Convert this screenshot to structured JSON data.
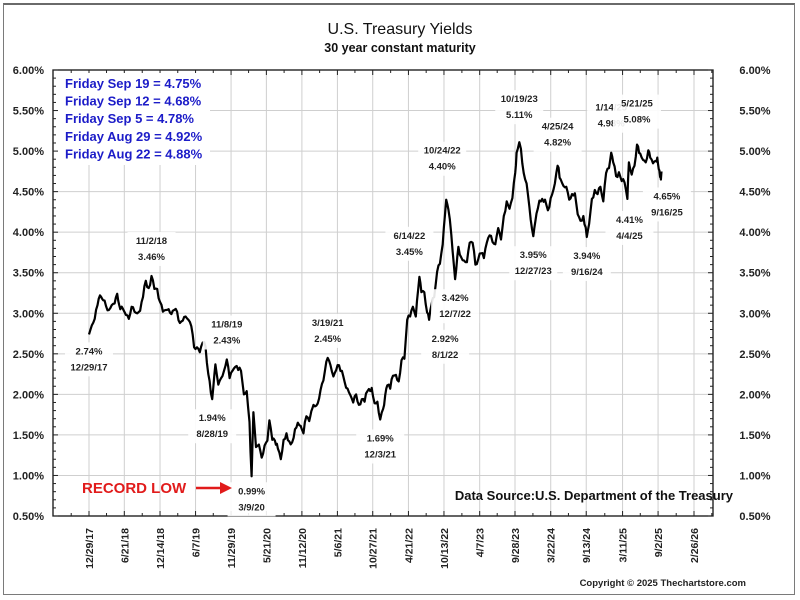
{
  "chart_data": {
    "type": "line",
    "title": "U.S. Treasury Yields",
    "subtitle": "30 year constant maturity",
    "xlabel": "",
    "ylabel": "",
    "ylim": [
      0.5,
      6.0
    ],
    "y_ticks": [
      "6.00%",
      "5.50%",
      "5.00%",
      "4.50%",
      "4.00%",
      "3.50%",
      "3.00%",
      "2.50%",
      "2.00%",
      "1.50%",
      "1.00%",
      "0.50%"
    ],
    "y_tick_values": [
      6.0,
      5.5,
      5.0,
      4.5,
      4.0,
      3.5,
      3.0,
      2.5,
      2.0,
      1.5,
      1.0,
      0.5
    ],
    "x_ticks": [
      "12/29/17",
      "6/21/18",
      "12/14/18",
      "6/7/19",
      "11/29/19",
      "5/21/20",
      "11/12/20",
      "5/6/21",
      "10/27/21",
      "4/21/22",
      "10/13/22",
      "4/7/23",
      "9/28/23",
      "3/22/24",
      "9/13/24",
      "3/11/25",
      "9/2/25",
      "2/26/26"
    ],
    "x_tick_dates": [
      "2017-12-29",
      "2018-06-21",
      "2018-12-14",
      "2019-06-07",
      "2019-11-29",
      "2020-05-21",
      "2020-11-12",
      "2021-05-06",
      "2021-10-27",
      "2022-04-21",
      "2022-10-13",
      "2023-04-07",
      "2023-09-28",
      "2024-03-22",
      "2024-09-13",
      "2025-03-11",
      "2025-09-02",
      "2026-02-26"
    ],
    "x_range": [
      "2017-10-01",
      "2026-05-15"
    ],
    "grid": true,
    "series": [
      {
        "name": "30 Year Treasury Yield",
        "points": [
          [
            "2017-12-29",
            2.74
          ],
          [
            "2018-01-12",
            2.85
          ],
          [
            "2018-01-26",
            2.93
          ],
          [
            "2018-02-09",
            3.1
          ],
          [
            "2018-02-21",
            3.22
          ],
          [
            "2018-03-09",
            3.16
          ],
          [
            "2018-03-23",
            3.09
          ],
          [
            "2018-04-06",
            3.04
          ],
          [
            "2018-04-20",
            3.1
          ],
          [
            "2018-05-04",
            3.12
          ],
          [
            "2018-05-17",
            3.24
          ],
          [
            "2018-06-01",
            3.05
          ],
          [
            "2018-06-15",
            3.05
          ],
          [
            "2018-06-29",
            2.98
          ],
          [
            "2018-07-13",
            2.93
          ],
          [
            "2018-07-27",
            3.08
          ],
          [
            "2018-08-10",
            3.02
          ],
          [
            "2018-08-24",
            3.0
          ],
          [
            "2018-09-07",
            3.03
          ],
          [
            "2018-09-21",
            3.2
          ],
          [
            "2018-10-05",
            3.4
          ],
          [
            "2018-10-19",
            3.31
          ],
          [
            "2018-11-02",
            3.46
          ],
          [
            "2018-11-16",
            3.3
          ],
          [
            "2018-11-30",
            3.3
          ],
          [
            "2018-12-14",
            3.14
          ],
          [
            "2018-12-28",
            3.02
          ],
          [
            "2019-01-11",
            3.04
          ],
          [
            "2019-01-25",
            3.05
          ],
          [
            "2019-02-08",
            2.99
          ],
          [
            "2019-02-22",
            3.04
          ],
          [
            "2019-03-08",
            3.02
          ],
          [
            "2019-03-22",
            2.88
          ],
          [
            "2019-04-05",
            2.91
          ],
          [
            "2019-04-19",
            2.96
          ],
          [
            "2019-05-03",
            2.92
          ],
          [
            "2019-05-17",
            2.84
          ],
          [
            "2019-05-31",
            2.58
          ],
          [
            "2019-06-14",
            2.58
          ],
          [
            "2019-06-28",
            2.52
          ],
          [
            "2019-07-12",
            2.64
          ],
          [
            "2019-07-26",
            2.59
          ],
          [
            "2019-08-09",
            2.25
          ],
          [
            "2019-08-28",
            1.94
          ],
          [
            "2019-09-13",
            2.37
          ],
          [
            "2019-09-27",
            2.12
          ],
          [
            "2019-10-11",
            2.2
          ],
          [
            "2019-10-25",
            2.29
          ],
          [
            "2019-11-08",
            2.43
          ],
          [
            "2019-11-22",
            2.2
          ],
          [
            "2019-12-06",
            2.29
          ],
          [
            "2019-12-20",
            2.34
          ],
          [
            "2020-01-03",
            2.3
          ],
          [
            "2020-01-17",
            2.29
          ],
          [
            "2020-01-31",
            2.0
          ],
          [
            "2020-02-14",
            2.04
          ],
          [
            "2020-02-28",
            1.66
          ],
          [
            "2020-03-09",
            0.99
          ],
          [
            "2020-03-18",
            1.78
          ],
          [
            "2020-03-31",
            1.35
          ],
          [
            "2020-04-14",
            1.38
          ],
          [
            "2020-04-28",
            1.22
          ],
          [
            "2020-05-12",
            1.37
          ],
          [
            "2020-05-26",
            1.43
          ],
          [
            "2020-06-05",
            1.68
          ],
          [
            "2020-06-19",
            1.44
          ],
          [
            "2020-07-02",
            1.43
          ],
          [
            "2020-07-17",
            1.33
          ],
          [
            "2020-07-31",
            1.2
          ],
          [
            "2020-08-14",
            1.44
          ],
          [
            "2020-08-28",
            1.52
          ],
          [
            "2020-09-11",
            1.42
          ],
          [
            "2020-09-25",
            1.41
          ],
          [
            "2020-10-09",
            1.57
          ],
          [
            "2020-10-23",
            1.65
          ],
          [
            "2020-11-06",
            1.61
          ],
          [
            "2020-11-20",
            1.52
          ],
          [
            "2020-12-04",
            1.73
          ],
          [
            "2020-12-18",
            1.67
          ],
          [
            "2021-01-08",
            1.87
          ],
          [
            "2021-01-22",
            1.86
          ],
          [
            "2021-02-05",
            1.95
          ],
          [
            "2021-02-19",
            2.13
          ],
          [
            "2021-03-05",
            2.28
          ],
          [
            "2021-03-19",
            2.45
          ],
          [
            "2021-04-02",
            2.36
          ],
          [
            "2021-04-16",
            2.22
          ],
          [
            "2021-04-30",
            2.3
          ],
          [
            "2021-05-14",
            2.36
          ],
          [
            "2021-05-28",
            2.29
          ],
          [
            "2021-06-11",
            2.15
          ],
          [
            "2021-06-25",
            2.07
          ],
          [
            "2021-07-09",
            1.99
          ],
          [
            "2021-07-23",
            1.9
          ],
          [
            "2021-08-06",
            2.0
          ],
          [
            "2021-08-20",
            1.87
          ],
          [
            "2021-09-03",
            1.94
          ],
          [
            "2021-09-17",
            1.91
          ],
          [
            "2021-10-01",
            2.04
          ],
          [
            "2021-10-15",
            2.04
          ],
          [
            "2021-10-22",
            2.08
          ],
          [
            "2021-11-05",
            1.89
          ],
          [
            "2021-11-19",
            1.91
          ],
          [
            "2021-12-03",
            1.69
          ],
          [
            "2021-12-17",
            1.82
          ],
          [
            "2022-01-07",
            2.11
          ],
          [
            "2022-01-21",
            2.07
          ],
          [
            "2022-02-04",
            2.23
          ],
          [
            "2022-02-18",
            2.24
          ],
          [
            "2022-03-04",
            2.16
          ],
          [
            "2022-03-18",
            2.42
          ],
          [
            "2022-04-01",
            2.44
          ],
          [
            "2022-04-15",
            2.92
          ],
          [
            "2022-04-29",
            2.96
          ],
          [
            "2022-05-13",
            3.08
          ],
          [
            "2022-05-27",
            2.96
          ],
          [
            "2022-06-14",
            3.45
          ],
          [
            "2022-06-24",
            3.26
          ],
          [
            "2022-07-08",
            3.26
          ],
          [
            "2022-07-22",
            3.01
          ],
          [
            "2022-08-01",
            2.92
          ],
          [
            "2022-08-12",
            3.1
          ],
          [
            "2022-08-26",
            3.2
          ],
          [
            "2022-09-09",
            3.51
          ],
          [
            "2022-09-23",
            3.61
          ],
          [
            "2022-10-07",
            3.85
          ],
          [
            "2022-10-24",
            4.4
          ],
          [
            "2022-11-04",
            4.28
          ],
          [
            "2022-11-18",
            3.97
          ],
          [
            "2022-12-07",
            3.42
          ],
          [
            "2022-12-23",
            3.82
          ],
          [
            "2023-01-06",
            3.69
          ],
          [
            "2023-01-20",
            3.65
          ],
          [
            "2023-02-03",
            3.63
          ],
          [
            "2023-02-17",
            3.87
          ],
          [
            "2023-03-03",
            3.87
          ],
          [
            "2023-03-17",
            3.6
          ],
          [
            "2023-03-31",
            3.67
          ],
          [
            "2023-04-14",
            3.74
          ],
          [
            "2023-04-28",
            3.68
          ],
          [
            "2023-05-12",
            3.87
          ],
          [
            "2023-05-26",
            3.96
          ],
          [
            "2023-06-09",
            3.88
          ],
          [
            "2023-06-23",
            3.85
          ],
          [
            "2023-07-07",
            4.05
          ],
          [
            "2023-07-21",
            3.91
          ],
          [
            "2023-08-04",
            4.2
          ],
          [
            "2023-08-18",
            4.38
          ],
          [
            "2023-09-01",
            4.29
          ],
          [
            "2023-09-15",
            4.42
          ],
          [
            "2023-09-29",
            4.73
          ],
          [
            "2023-10-06",
            4.98
          ],
          [
            "2023-10-19",
            5.11
          ],
          [
            "2023-10-27",
            5.03
          ],
          [
            "2023-11-10",
            4.73
          ],
          [
            "2023-11-24",
            4.6
          ],
          [
            "2023-12-08",
            4.31
          ],
          [
            "2023-12-27",
            3.95
          ],
          [
            "2024-01-12",
            4.23
          ],
          [
            "2024-01-26",
            4.39
          ],
          [
            "2024-02-09",
            4.41
          ],
          [
            "2024-02-23",
            4.4
          ],
          [
            "2024-03-08",
            4.27
          ],
          [
            "2024-03-22",
            4.42
          ],
          [
            "2024-04-05",
            4.53
          ],
          [
            "2024-04-25",
            4.82
          ],
          [
            "2024-05-10",
            4.65
          ],
          [
            "2024-05-24",
            4.57
          ],
          [
            "2024-06-07",
            4.56
          ],
          [
            "2024-06-21",
            4.4
          ],
          [
            "2024-07-05",
            4.47
          ],
          [
            "2024-07-19",
            4.48
          ],
          [
            "2024-08-02",
            4.22
          ],
          [
            "2024-08-16",
            4.14
          ],
          [
            "2024-08-30",
            4.2
          ],
          [
            "2024-09-16",
            3.94
          ],
          [
            "2024-09-27",
            4.1
          ],
          [
            "2024-10-11",
            4.41
          ],
          [
            "2024-10-25",
            4.52
          ],
          [
            "2024-11-08",
            4.47
          ],
          [
            "2024-11-22",
            4.56
          ],
          [
            "2024-12-06",
            4.38
          ],
          [
            "2024-12-20",
            4.73
          ],
          [
            "2025-01-03",
            4.79
          ],
          [
            "2025-01-14",
            4.98
          ],
          [
            "2025-01-24",
            4.86
          ],
          [
            "2025-02-07",
            4.69
          ],
          [
            "2025-02-21",
            4.74
          ],
          [
            "2025-03-07",
            4.63
          ],
          [
            "2025-03-21",
            4.61
          ],
          [
            "2025-04-04",
            4.41
          ],
          [
            "2025-04-11",
            4.86
          ],
          [
            "2025-04-25",
            4.71
          ],
          [
            "2025-05-09",
            4.82
          ],
          [
            "2025-05-21",
            5.08
          ],
          [
            "2025-06-06",
            4.97
          ],
          [
            "2025-06-20",
            4.89
          ],
          [
            "2025-07-03",
            4.86
          ],
          [
            "2025-07-16",
            5.01
          ],
          [
            "2025-07-25",
            4.92
          ],
          [
            "2025-08-08",
            4.85
          ],
          [
            "2025-08-22",
            4.88
          ],
          [
            "2025-08-29",
            4.92
          ],
          [
            "2025-09-05",
            4.78
          ],
          [
            "2025-09-12",
            4.68
          ],
          [
            "2025-09-16",
            4.65
          ],
          [
            "2025-09-19",
            4.75
          ]
        ]
      }
    ],
    "annotations": [
      {
        "date_label": "12/29/17",
        "value_label": "2.74%",
        "date": "2017-12-29",
        "value": 2.74,
        "position": "below",
        "order": "value-first"
      },
      {
        "date_label": "11/2/18",
        "value_label": "3.46%",
        "date": "2018-11-02",
        "value": 3.46,
        "position": "above",
        "order": "date-first"
      },
      {
        "date_label": "8/28/19",
        "value_label": "1.94%",
        "date": "2019-08-28",
        "value": 1.94,
        "position": "below",
        "order": "value-first"
      },
      {
        "date_label": "11/8/19",
        "value_label": "2.43%",
        "date": "2019-11-08",
        "value": 2.43,
        "position": "above",
        "order": "date-first"
      },
      {
        "date_label": "3/9/20",
        "value_label": "0.99%",
        "date": "2020-03-09",
        "value": 0.99,
        "position": "below",
        "order": "value-first"
      },
      {
        "date_label": "3/19/21",
        "value_label": "2.45%",
        "date": "2021-03-19",
        "value": 2.45,
        "position": "above",
        "order": "date-first"
      },
      {
        "date_label": "12/3/21",
        "value_label": "1.69%",
        "date": "2021-12-03",
        "value": 1.69,
        "position": "below",
        "order": "value-first"
      },
      {
        "date_label": "6/14/22",
        "value_label": "3.45%",
        "date": "2022-06-14",
        "value": 3.45,
        "position": "above-left",
        "order": "date-first"
      },
      {
        "date_label": "8/1/22",
        "value_label": "2.92%",
        "date": "2022-08-01",
        "value": 2.92,
        "position": "below-right",
        "order": "value-first"
      },
      {
        "date_label": "10/24/22",
        "value_label": "4.40%",
        "date": "2022-10-24",
        "value": 4.4,
        "position": "above",
        "order": "date-first"
      },
      {
        "date_label": "12/7/22",
        "value_label": "3.42%",
        "date": "2022-12-07",
        "value": 3.42,
        "position": "below",
        "order": "value-first"
      },
      {
        "date_label": "10/19/23",
        "value_label": "5.11%",
        "date": "2023-10-19",
        "value": 5.11,
        "position": "above",
        "order": "date-first"
      },
      {
        "date_label": "12/27/23",
        "value_label": "3.95%",
        "date": "2023-12-27",
        "value": 3.95,
        "position": "below",
        "order": "value-first"
      },
      {
        "date_label": "4/25/24",
        "value_label": "4.82%",
        "date": "2024-04-25",
        "value": 4.82,
        "position": "above",
        "order": "date-first"
      },
      {
        "date_label": "9/16/24",
        "value_label": "3.94%",
        "date": "2024-09-16",
        "value": 3.94,
        "position": "below",
        "order": "value-first"
      },
      {
        "date_label": "1/14/25",
        "value_label": "4.98%",
        "date": "2025-01-14",
        "value": 4.98,
        "position": "above",
        "order": "date-first"
      },
      {
        "date_label": "4/4/25",
        "value_label": "4.41%",
        "date": "2025-04-04",
        "value": 4.41,
        "position": "below",
        "order": "value-first"
      },
      {
        "date_label": "5/21/25",
        "value_label": "5.08%",
        "date": "2025-05-21",
        "value": 5.08,
        "position": "above",
        "order": "date-first"
      },
      {
        "date_label": "9/16/25",
        "value_label": "4.65%",
        "date": "2025-09-16",
        "value": 4.65,
        "position": "below",
        "order": "value-first"
      }
    ],
    "legend": {
      "position": "top-left",
      "entries": [
        "Friday Sep 19 = 4.75%",
        "Friday Sep 12 = 4.68%",
        "Friday Sep 5 = 4.78%",
        "Friday Aug 29 = 4.92%",
        "Friday Aug 22 = 4.88%"
      ],
      "color": "#1c1cc8"
    },
    "record_low_label": "RECORD LOW",
    "record_low_color": "#e11b1b",
    "source_note": "Data Source:U.S. Department of the Treasury",
    "copyright": "Copyright © 2025 Thechartstore.com"
  }
}
